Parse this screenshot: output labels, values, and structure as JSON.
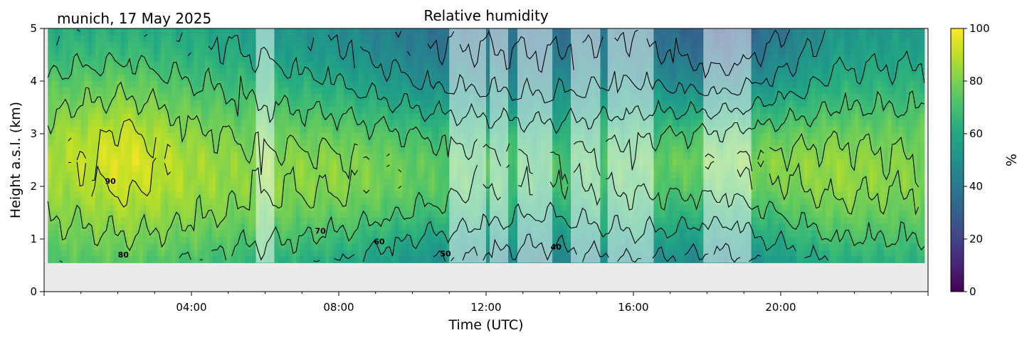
{
  "header": {
    "location_date": "munich, 17 May 2025",
    "title": "Relative humidity"
  },
  "chart_data": {
    "type": "heatmap",
    "variant": "filled-contour time-height cross-section",
    "title": "Relative humidity",
    "location_date": "munich, 17 May 2025",
    "xlabel": "Time (UTC)",
    "ylabel": "Height a.s.l. (km)",
    "xlim_hours": [
      0,
      24
    ],
    "x_tick_labels": [
      "04:00",
      "08:00",
      "12:00",
      "16:00",
      "20:00"
    ],
    "x_tick_hours": [
      4,
      8,
      12,
      16,
      20
    ],
    "ylim_km": [
      0,
      5
    ],
    "y_ticks": [
      0,
      1,
      2,
      3,
      4,
      5
    ],
    "data_bottom_km": 0.55,
    "data_time_range_hours": [
      0.1,
      23.9
    ],
    "colormap": "viridis",
    "colorbar": {
      "label": "%",
      "range": [
        0,
        100
      ],
      "ticks": [
        0,
        20,
        40,
        60,
        80,
        100
      ]
    },
    "contour_levels_drawn": [
      40,
      50,
      60,
      70,
      80,
      90
    ],
    "contour_labels": [
      {
        "text": "80",
        "hour": 2.15,
        "km": 0.65
      },
      {
        "text": "90",
        "hour": 1.8,
        "km": 2.05
      },
      {
        "text": "70",
        "hour": 7.5,
        "km": 1.1
      },
      {
        "text": "60",
        "hour": 9.1,
        "km": 0.9
      },
      {
        "text": "50",
        "hour": 10.9,
        "km": 0.67
      },
      {
        "text": "40",
        "hour": 13.9,
        "km": 0.8
      }
    ],
    "masked_intervals_hours": [
      [
        5.75,
        6.25
      ],
      [
        11.0,
        12.0
      ],
      [
        12.1,
        12.6
      ],
      [
        12.85,
        13.8
      ],
      [
        14.3,
        15.1
      ],
      [
        15.3,
        16.55
      ],
      [
        17.9,
        19.2
      ]
    ],
    "rh_profile_by_time": [
      {
        "hour": 0.1,
        "levels_km": [
          0.55,
          1.0,
          1.5,
          2.0,
          2.5,
          3.0,
          3.5,
          4.0,
          4.5,
          5.0
        ],
        "rh": [
          72,
          76,
          80,
          84,
          86,
          84,
          78,
          72,
          66,
          62
        ]
      },
      {
        "hour": 2.2,
        "levels_km": [
          0.55,
          1.0,
          1.5,
          2.0,
          2.5,
          3.0,
          3.5,
          4.0,
          4.5,
          5.0
        ],
        "rh": [
          74,
          80,
          86,
          92,
          96,
          92,
          84,
          76,
          68,
          62
        ]
      },
      {
        "hour": 4.0,
        "levels_km": [
          0.55,
          1.0,
          1.5,
          2.0,
          2.5,
          3.0,
          3.5,
          4.0,
          4.5,
          5.0
        ],
        "rh": [
          70,
          76,
          82,
          86,
          86,
          82,
          76,
          70,
          64,
          60
        ]
      },
      {
        "hour": 5.5,
        "levels_km": [
          0.55,
          1.0,
          1.5,
          2.0,
          2.5,
          3.0,
          3.5,
          4.0,
          4.5,
          5.0
        ],
        "rh": [
          66,
          72,
          78,
          82,
          82,
          78,
          72,
          66,
          60,
          56
        ]
      },
      {
        "hour": 8.0,
        "levels_km": [
          0.55,
          1.0,
          1.5,
          2.0,
          2.5,
          3.0,
          3.5,
          4.0,
          4.5,
          5.0
        ],
        "rh": [
          60,
          68,
          76,
          82,
          82,
          76,
          68,
          60,
          52,
          48
        ]
      },
      {
        "hour": 10.5,
        "levels_km": [
          0.55,
          1.0,
          1.5,
          2.0,
          2.5,
          3.0,
          3.5,
          4.0,
          4.5,
          5.0
        ],
        "rh": [
          50,
          58,
          68,
          74,
          74,
          68,
          58,
          48,
          42,
          38
        ]
      },
      {
        "hour": 13.5,
        "levels_km": [
          0.55,
          1.0,
          1.5,
          2.0,
          2.5,
          3.0,
          3.5,
          4.0,
          4.5,
          5.0
        ],
        "rh": [
          44,
          52,
          60,
          68,
          70,
          64,
          54,
          46,
          40,
          36
        ]
      },
      {
        "hour": 16.0,
        "levels_km": [
          0.55,
          1.0,
          1.5,
          2.0,
          2.5,
          3.0,
          3.5,
          4.0,
          4.5,
          5.0
        ],
        "rh": [
          50,
          58,
          66,
          72,
          74,
          68,
          58,
          50,
          44,
          40
        ]
      },
      {
        "hour": 18.5,
        "levels_km": [
          0.55,
          1.0,
          1.5,
          2.0,
          2.5,
          3.0,
          3.5,
          4.0,
          4.5,
          5.0
        ],
        "rh": [
          46,
          54,
          64,
          74,
          80,
          72,
          58,
          44,
          34,
          26
        ]
      },
      {
        "hour": 21.5,
        "levels_km": [
          0.55,
          1.0,
          1.5,
          2.0,
          2.5,
          3.0,
          3.5,
          4.0,
          4.5,
          5.0
        ],
        "rh": [
          62,
          70,
          78,
          84,
          84,
          78,
          70,
          62,
          56,
          52
        ]
      },
      {
        "hour": 23.9,
        "levels_km": [
          0.55,
          1.0,
          1.5,
          2.0,
          2.5,
          3.0,
          3.5,
          4.0,
          4.5,
          5.0
        ],
        "rh": [
          64,
          70,
          76,
          80,
          80,
          76,
          70,
          64,
          58,
          54
        ]
      }
    ]
  }
}
